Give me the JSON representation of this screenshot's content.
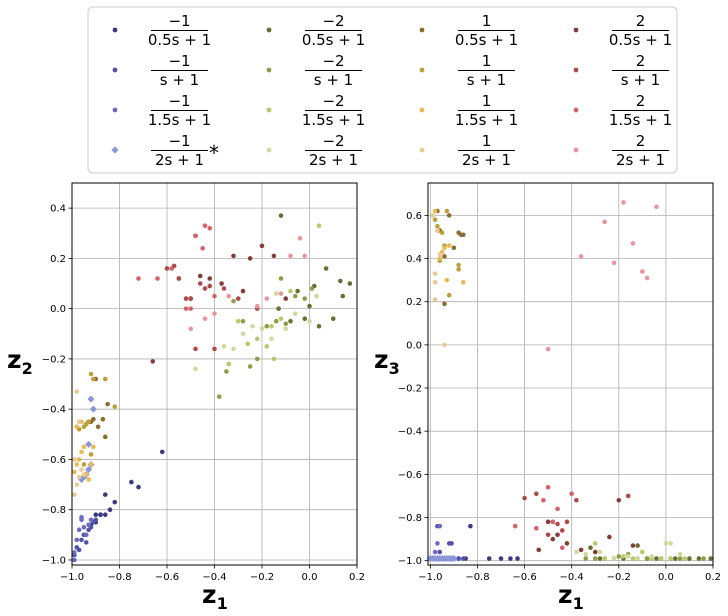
{
  "legend": {
    "entries": [
      {
        "num": "−1",
        "den": "0.5s + 1",
        "color": "#3a3a80",
        "marker": "circle",
        "suffix": ""
      },
      {
        "num": "−1",
        "den": "s + 1",
        "color": "#5252a8",
        "marker": "circle",
        "suffix": ""
      },
      {
        "num": "−1",
        "den": "1.5s + 1",
        "color": "#6b6bc2",
        "marker": "circle",
        "suffix": ""
      },
      {
        "num": "−1",
        "den": "2s + 1",
        "color": "#8b95d8",
        "marker": "diamond",
        "suffix": "*"
      },
      {
        "num": "−2",
        "den": "0.5s + 1",
        "color": "#6b6d31",
        "marker": "circle",
        "suffix": ""
      },
      {
        "num": "−2",
        "den": "s + 1",
        "color": "#8c9e4a",
        "marker": "circle",
        "suffix": ""
      },
      {
        "num": "−2",
        "den": "1.5s + 1",
        "color": "#b5cb6b",
        "marker": "circle",
        "suffix": ""
      },
      {
        "num": "−2",
        "den": "2s + 1",
        "color": "#cedb9c",
        "marker": "circle",
        "suffix": ""
      },
      {
        "num": "1",
        "den": "0.5s + 1",
        "color": "#8c6d31",
        "marker": "circle",
        "suffix": ""
      },
      {
        "num": "1",
        "den": "s + 1",
        "color": "#bd9e39",
        "marker": "circle",
        "suffix": ""
      },
      {
        "num": "1",
        "den": "1.5s + 1",
        "color": "#e7ba52",
        "marker": "circle",
        "suffix": ""
      },
      {
        "num": "1",
        "den": "2s + 1",
        "color": "#e7cb94",
        "marker": "circle",
        "suffix": ""
      },
      {
        "num": "2",
        "den": "0.5s + 1",
        "color": "#843c39",
        "marker": "circle",
        "suffix": ""
      },
      {
        "num": "2",
        "den": "s + 1",
        "color": "#ad494a",
        "marker": "circle",
        "suffix": ""
      },
      {
        "num": "2",
        "den": "1.5s + 1",
        "color": "#d6616b",
        "marker": "circle",
        "suffix": ""
      },
      {
        "num": "2",
        "den": "2s + 1",
        "color": "#e7969c",
        "marker": "circle",
        "suffix": ""
      }
    ]
  },
  "chart_data": [
    {
      "type": "scatter",
      "xlabel": "z",
      "xlabel_sub": "1",
      "ylabel": "z",
      "ylabel_sub": "2",
      "xlim": [
        -1.0,
        0.2
      ],
      "ylim": [
        -1.02,
        0.5
      ],
      "xticks": [
        -1.0,
        -0.8,
        -0.6,
        -0.4,
        -0.2,
        0.0,
        0.2
      ],
      "xtick_labels": [
        "−1.0",
        "−0.8",
        "−0.6",
        "−0.4",
        "−0.2",
        "0.0",
        "0.2"
      ],
      "yticks": [
        -1.0,
        -0.8,
        -0.6,
        -0.4,
        -0.2,
        0.0,
        0.2,
        0.4
      ],
      "ytick_labels": [
        "−1.0",
        "−0.8",
        "−0.6",
        "−0.4",
        "−0.2",
        "0.0",
        "0.2",
        "0.4"
      ],
      "grid": true,
      "series": [
        {
          "name": "−1/(0.5s+1)",
          "x": [
            -0.9,
            -0.88,
            -0.86,
            -0.84,
            -0.82,
            -0.75,
            -0.72,
            -0.62,
            -0.92,
            -0.9,
            -0.86,
            -0.88
          ],
          "y": [
            -0.82,
            -0.82,
            -0.82,
            -0.8,
            -0.77,
            -0.69,
            -0.71,
            -0.57,
            -0.86,
            -0.85,
            -0.74,
            -0.82
          ]
        },
        {
          "name": "−1/(s+1)",
          "x": [
            -0.98,
            -0.96,
            -0.95,
            -0.93,
            -0.92,
            -0.91,
            -0.9,
            -0.94,
            -0.97,
            -0.99
          ],
          "y": [
            -0.95,
            -0.92,
            -0.9,
            -0.88,
            -0.87,
            -0.85,
            -0.84,
            -0.93,
            -0.96,
            -0.98
          ]
        },
        {
          "name": "−1/(1.5s+1)",
          "x": [
            -0.99,
            -0.98,
            -0.97,
            -0.96,
            -0.95,
            -0.94,
            -0.93,
            -0.92,
            -0.96,
            -0.99
          ],
          "y": [
            -1.0,
            -0.92,
            -0.88,
            -0.84,
            -0.87,
            -0.9,
            -0.86,
            -0.84,
            -0.83,
            -0.97
          ]
        },
        {
          "name": "−1/(2s+1)",
          "x": [
            -0.96,
            -0.95,
            -0.94,
            -0.93,
            -0.92,
            -0.93,
            -0.91,
            -0.92
          ],
          "y": [
            -0.68,
            -0.67,
            -0.66,
            -0.64,
            -0.62,
            -0.54,
            -0.4,
            -0.36
          ]
        },
        {
          "name": "−2/(0.5s+1)",
          "x": [
            -0.12,
            -0.08,
            -0.05,
            -0.02,
            0.0,
            0.02,
            0.04,
            0.07,
            0.1,
            0.13,
            0.14,
            0.17,
            -0.13
          ],
          "y": [
            0.37,
            -0.05,
            0.07,
            -0.04,
            0.01,
            0.09,
            -0.07,
            0.16,
            -0.04,
            0.11,
            0.05,
            0.1,
            0.0
          ]
        },
        {
          "name": "−2/(s+1)",
          "x": [
            -0.38,
            -0.35,
            -0.32,
            -0.28,
            -0.25,
            -0.22,
            -0.18,
            -0.14,
            -0.12,
            -0.1,
            -0.06,
            -0.02,
            0.01
          ],
          "y": [
            -0.35,
            -0.25,
            0.03,
            -0.05,
            -0.23,
            -0.2,
            -0.07,
            -0.05,
            0.12,
            -0.06,
            0.05,
            0.04,
            0.08
          ]
        },
        {
          "name": "−2/(1.5s+1)",
          "x": [
            -0.34,
            -0.3,
            -0.26,
            -0.22,
            -0.2,
            -0.16,
            -0.15,
            -0.12,
            -0.1,
            -0.08,
            0.04,
            -0.18
          ],
          "y": [
            -0.22,
            -0.05,
            -0.14,
            -0.12,
            -0.08,
            -0.07,
            -0.2,
            -0.04,
            -0.08,
            0.07,
            0.33,
            -0.15
          ]
        },
        {
          "name": "−2/(2s+1)",
          "x": [
            -0.48,
            -0.36,
            -0.32,
            -0.28,
            -0.24,
            -0.2,
            -0.16,
            -0.1,
            -0.06,
            0.0,
            0.03,
            -0.14
          ],
          "y": [
            -0.24,
            -0.15,
            -0.16,
            -0.1,
            -0.07,
            -0.08,
            -0.12,
            -0.08,
            -0.02,
            -0.05,
            0.05,
            0.06
          ]
        },
        {
          "name": "1/(0.5s+1)",
          "x": [
            -0.93,
            -0.92,
            -0.91,
            -0.89,
            -0.87,
            -0.86,
            -0.85,
            -0.9,
            -0.94
          ],
          "y": [
            -0.45,
            -0.45,
            -0.44,
            -0.47,
            -0.44,
            -0.51,
            -0.38,
            -0.28,
            -0.46
          ]
        },
        {
          "name": "1/(s+1)",
          "x": [
            -0.97,
            -0.95,
            -0.94,
            -0.93,
            -0.92,
            -0.91,
            -0.86,
            -0.82,
            -0.95,
            -0.92
          ],
          "y": [
            -0.48,
            -0.47,
            -0.46,
            -0.45,
            -0.26,
            -0.28,
            -0.28,
            -0.39,
            -0.62,
            -0.58
          ]
        },
        {
          "name": "1/(1.5s+1)",
          "x": [
            -0.99,
            -0.98,
            -0.97,
            -0.96,
            -0.95,
            -0.94,
            -0.93,
            -0.92,
            -0.91,
            -0.96,
            -0.98
          ],
          "y": [
            -0.65,
            -0.62,
            -0.6,
            -0.57,
            -0.55,
            -0.66,
            -0.68,
            -0.62,
            -0.55,
            -0.45,
            -0.47
          ]
        },
        {
          "name": "1/(2s+1)",
          "x": [
            -0.99,
            -0.98,
            -0.97,
            -0.96,
            -0.95,
            -0.97,
            -0.98,
            -0.99
          ],
          "y": [
            -0.74,
            -0.7,
            -0.67,
            -0.64,
            -0.66,
            -0.45,
            -0.33,
            -0.6
          ]
        },
        {
          "name": "2/(0.5s+1)",
          "x": [
            -0.66,
            -0.55,
            -0.5,
            -0.48,
            -0.46,
            -0.42,
            -0.37,
            -0.32,
            -0.28,
            -0.25,
            -0.2,
            -0.15,
            -0.1
          ],
          "y": [
            -0.21,
            0.12,
            0.04,
            0.29,
            0.13,
            0.12,
            0.1,
            0.21,
            0.07,
            0.2,
            0.25,
            0.21,
            0.04
          ]
        },
        {
          "name": "2/(s+1)",
          "x": [
            -0.6,
            -0.57,
            -0.55,
            -0.52,
            -0.5,
            -0.48,
            -0.46,
            -0.44,
            -0.42,
            -0.4,
            -0.36,
            -0.3,
            -0.22
          ],
          "y": [
            0.16,
            0.17,
            0.12,
            0.04,
            0.04,
            -0.16,
            0.1,
            0.08,
            0.09,
            -0.16,
            0.08,
            0.04,
            0.0
          ]
        },
        {
          "name": "2/(1.5s+1)",
          "x": [
            -0.72,
            -0.64,
            -0.58,
            -0.52,
            -0.5,
            -0.48,
            -0.45,
            -0.44,
            -0.42,
            -0.4
          ],
          "y": [
            0.12,
            0.12,
            0.16,
            0.0,
            0.0,
            0.29,
            0.24,
            0.33,
            0.32,
            0.05
          ]
        },
        {
          "name": "2/(2s+1)",
          "x": [
            -0.5,
            -0.44,
            -0.4,
            -0.34,
            -0.22,
            -0.18,
            -0.12,
            -0.08,
            -0.04,
            -0.02
          ],
          "y": [
            -0.08,
            -0.04,
            -0.02,
            0.05,
            0.01,
            0.04,
            0.06,
            0.21,
            0.28,
            0.21
          ]
        }
      ]
    },
    {
      "type": "scatter",
      "xlabel": "z",
      "xlabel_sub": "1",
      "ylabel": "z",
      "ylabel_sub": "3",
      "xlim": [
        -1.01,
        0.2
      ],
      "ylim": [
        -1.02,
        0.75
      ],
      "xticks": [
        -1.0,
        -0.8,
        -0.6,
        -0.4,
        -0.2,
        0.0,
        0.2
      ],
      "xtick_labels": [
        "−1.0",
        "−0.8",
        "−0.6",
        "−0.4",
        "−0.2",
        "0.0",
        "0.2"
      ],
      "yticks": [
        -1.0,
        -0.8,
        -0.6,
        -0.4,
        -0.2,
        0.0,
        0.2,
        0.4,
        0.6
      ],
      "ytick_labels": [
        "−1.0",
        "−0.8",
        "−0.6",
        "−0.4",
        "−0.2",
        "0.0",
        "0.2",
        "0.4",
        "0.6"
      ],
      "grid": true,
      "series": [
        {
          "name": "−1/(0.5s+1)",
          "x": [
            -0.85,
            -0.88,
            -0.9,
            -0.92,
            -0.94,
            -0.75,
            -0.7,
            -0.66,
            -0.63,
            -0.83
          ],
          "y": [
            -0.99,
            -0.99,
            -0.99,
            -0.99,
            -0.99,
            -0.99,
            -0.99,
            -0.99,
            -0.99,
            -0.84
          ]
        },
        {
          "name": "−1/(s+1)",
          "x": [
            -0.95,
            -0.93,
            -0.92,
            -0.91,
            -0.9,
            -0.88,
            -0.86,
            -0.96,
            -0.97
          ],
          "y": [
            -0.99,
            -0.99,
            -0.92,
            -0.92,
            -0.99,
            -0.99,
            -0.99,
            -0.96,
            -0.84
          ]
        },
        {
          "name": "−1/(1.5s+1)",
          "x": [
            -1.0,
            -0.99,
            -0.98,
            -0.97,
            -0.96,
            -0.95,
            -0.94,
            -0.92,
            -0.98,
            -0.97,
            -0.96
          ],
          "y": [
            -0.99,
            -0.99,
            -0.99,
            -0.99,
            -0.99,
            -0.99,
            -0.99,
            -0.99,
            -0.96,
            -0.92,
            -0.84
          ]
        },
        {
          "name": "−1/(2s+1)",
          "x": [
            -1.0,
            -0.99,
            -0.98,
            -0.97,
            -0.96,
            -0.95,
            -0.94,
            -0.93,
            -0.92,
            -0.91,
            -0.9
          ],
          "y": [
            -0.99,
            -0.99,
            -0.99,
            -0.99,
            -0.99,
            -0.99,
            -0.99,
            -0.99,
            -0.99,
            -0.99,
            -0.99
          ]
        },
        {
          "name": "−2/(0.5s+1)",
          "x": [
            -0.32,
            -0.28,
            -0.22,
            -0.18,
            -0.12,
            -0.08,
            -0.04,
            0.04,
            0.1,
            0.14,
            0.19
          ],
          "y": [
            -0.94,
            -0.99,
            -0.99,
            -0.99,
            -0.93,
            -0.99,
            -0.99,
            -0.99,
            -0.99,
            -0.99,
            -0.99
          ]
        },
        {
          "name": "−2/(s+1)",
          "x": [
            -0.34,
            -0.3,
            -0.26,
            -0.2,
            -0.16,
            -0.12,
            -0.08,
            -0.02,
            0.02,
            0.06,
            0.16
          ],
          "y": [
            -0.99,
            -0.99,
            -0.99,
            -0.98,
            -0.97,
            -0.99,
            -0.99,
            -0.99,
            -0.99,
            -0.99,
            -0.99
          ]
        },
        {
          "name": "−2/(1.5s+1)",
          "x": [
            -0.3,
            -0.26,
            -0.22,
            -0.18,
            -0.14,
            -0.1,
            -0.06,
            -0.02,
            0.02,
            0.08
          ],
          "y": [
            -0.92,
            -0.99,
            -0.99,
            -0.98,
            -0.99,
            -0.96,
            -0.99,
            -0.99,
            -0.99,
            -0.99
          ]
        },
        {
          "name": "−2/(2s+1)",
          "x": [
            -0.38,
            -0.34,
            -0.28,
            -0.22,
            -0.16,
            -0.12,
            -0.06,
            0.0,
            0.02,
            0.06
          ],
          "y": [
            -0.96,
            -0.97,
            -0.96,
            -0.99,
            -0.98,
            -0.99,
            -0.98,
            -0.92,
            -0.92,
            -0.97
          ]
        },
        {
          "name": "1/(0.5s+1)",
          "x": [
            -0.97,
            -0.96,
            -0.94,
            -0.92,
            -0.9,
            -0.88,
            -0.87,
            -0.86,
            -0.94
          ],
          "y": [
            0.62,
            0.53,
            0.41,
            0.6,
            0.45,
            0.52,
            0.51,
            0.51,
            0.19
          ]
        },
        {
          "name": "1/(s+1)",
          "x": [
            -0.98,
            -0.97,
            -0.96,
            -0.95,
            -0.93,
            -0.92,
            -0.88,
            -0.88,
            -0.94
          ],
          "y": [
            0.58,
            0.55,
            0.39,
            0.52,
            0.62,
            0.23,
            0.37,
            0.35,
            0.46
          ]
        },
        {
          "name": "1/(1.5s+1)",
          "x": [
            -0.99,
            -0.98,
            -0.97,
            -0.96,
            -0.95,
            -0.94,
            -0.93,
            -0.92,
            -0.86
          ],
          "y": [
            0.6,
            0.62,
            0.53,
            0.4,
            0.43,
            0.45,
            0.3,
            0.46,
            0.29
          ]
        },
        {
          "name": "1/(2s+1)",
          "x": [
            -0.99,
            -0.98,
            -0.97,
            -0.96,
            -0.94,
            -0.98,
            -0.98
          ],
          "y": [
            0.6,
            0.29,
            0.53,
            0.42,
            0.0,
            0.21,
            0.33
          ]
        },
        {
          "name": "2/(0.5s+1)",
          "x": [
            -0.54,
            -0.5,
            -0.48,
            -0.46,
            -0.42,
            -0.36,
            -0.3,
            -0.24,
            -0.2,
            -0.14
          ],
          "y": [
            -0.95,
            -0.82,
            -0.9,
            -0.88,
            -0.92,
            -0.95,
            -0.96,
            -0.89,
            -0.72,
            -0.93
          ]
        },
        {
          "name": "2/(s+1)",
          "x": [
            -0.6,
            -0.55,
            -0.5,
            -0.48,
            -0.46,
            -0.44,
            -0.42,
            -0.38,
            -0.16
          ],
          "y": [
            -0.71,
            -0.69,
            -0.88,
            -0.82,
            -0.83,
            -0.86,
            -0.82,
            -0.72,
            -0.7
          ]
        },
        {
          "name": "2/(1.5s+1)",
          "x": [
            -0.64,
            -0.55,
            -0.52,
            -0.5,
            -0.48,
            -0.46,
            -0.44,
            -0.4
          ],
          "y": [
            -0.84,
            -0.85,
            -0.72,
            -0.66,
            -0.82,
            -0.76,
            -0.94,
            -0.69
          ]
        },
        {
          "name": "2/(2s+1)",
          "x": [
            -0.5,
            -0.36,
            -0.26,
            -0.22,
            -0.18,
            -0.14,
            -0.1,
            -0.08,
            -0.04
          ],
          "y": [
            -0.02,
            0.41,
            0.57,
            0.38,
            0.66,
            0.47,
            0.34,
            0.31,
            0.64
          ]
        }
      ]
    }
  ]
}
